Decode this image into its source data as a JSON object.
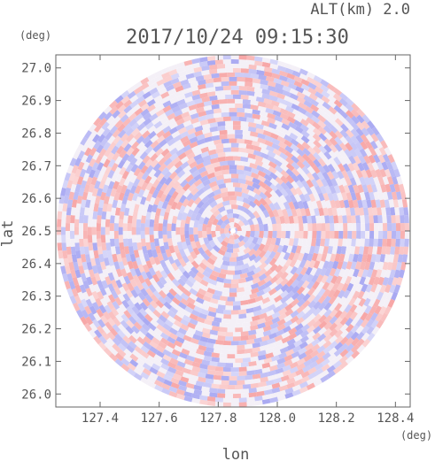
{
  "header": {
    "altitude_label": "ALT(km) 2.0",
    "timestamp": "2017/10/24 09:15:30"
  },
  "chart_data": {
    "type": "heatmap",
    "projection": "polar-sector (radar PPI)",
    "xlabel": "lon",
    "ylabel": "lat",
    "xunit": "(deg)",
    "yunit": "(deg)",
    "xlim": [
      127.25,
      128.45
    ],
    "ylim": [
      25.96,
      27.04
    ],
    "xticks": [
      "127.4",
      "127.6",
      "127.8",
      "128.0",
      "128.2",
      "128.4"
    ],
    "yticks": [
      "26.0",
      "26.1",
      "26.2",
      "26.3",
      "26.4",
      "26.5",
      "26.6",
      "26.7",
      "26.8",
      "26.9",
      "27.0"
    ],
    "center": {
      "lon": 127.85,
      "lat": 26.5
    },
    "radius_lat_deg": 0.54,
    "colors": {
      "positive": "#f7a7a7",
      "negative": "#a9a9f2",
      "neutral": "#f4f0f7"
    },
    "grid": false
  }
}
